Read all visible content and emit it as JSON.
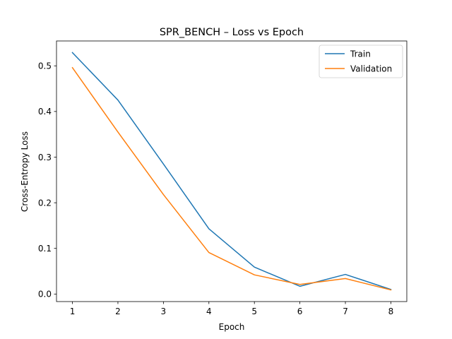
{
  "chart_data": {
    "type": "line",
    "title": "SPR_BENCH – Loss vs Epoch",
    "xlabel": "Epoch",
    "ylabel": "Cross-Entropy Loss",
    "x": [
      1,
      2,
      3,
      4,
      5,
      6,
      7,
      8
    ],
    "xlim": [
      0.65,
      8.35
    ],
    "ylim": [
      -0.0165,
      0.5545
    ],
    "xticks": [
      1,
      2,
      3,
      4,
      5,
      6,
      7,
      8
    ],
    "yticks": [
      0.0,
      0.1,
      0.2,
      0.3,
      0.4,
      0.5
    ],
    "ytick_labels": [
      "0.0",
      "0.1",
      "0.2",
      "0.3",
      "0.4",
      "0.5"
    ],
    "grid": false,
    "legend_position": "top-right",
    "series": [
      {
        "name": "Train",
        "color": "#1f77b4",
        "values": [
          0.529,
          0.425,
          0.285,
          0.143,
          0.059,
          0.017,
          0.043,
          0.01
        ]
      },
      {
        "name": "Validation",
        "color": "#ff7f0e",
        "values": [
          0.496,
          0.355,
          0.218,
          0.091,
          0.042,
          0.021,
          0.034,
          0.009
        ]
      }
    ]
  }
}
